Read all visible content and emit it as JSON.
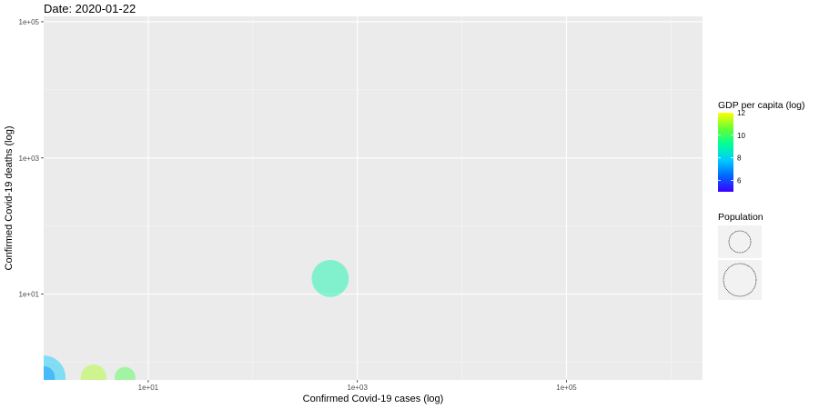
{
  "chart_data": {
    "type": "scatter",
    "title": "Date: 2020-01-22",
    "xlabel": "Confirmed Covid-19 cases (log)",
    "ylabel": "Confirmed Covid-19 deaths (log)",
    "x_scale": "log10",
    "y_scale": "log10",
    "xlim": [
      1,
      2000000
    ],
    "ylim": [
      0.55,
      120000
    ],
    "x_ticks": [
      10,
      1000,
      100000
    ],
    "x_tick_labels": [
      "1e+01",
      "1e+03",
      "1e+05"
    ],
    "y_ticks": [
      10,
      1000,
      100000
    ],
    "y_tick_labels": [
      "1e+01",
      "1e+03",
      "1e+05"
    ],
    "grid": true,
    "legend_position": "right",
    "color_legend": {
      "title": "GDP per capita (log)",
      "range": [
        5,
        12
      ],
      "tick_values": [
        12,
        10,
        8,
        6
      ],
      "tick_labels": [
        "12",
        "10",
        "8",
        "6"
      ],
      "colors": [
        "#3b00ff",
        "#0066ff",
        "#00ccff",
        "#00ff99",
        "#66ff33",
        "#ffff00"
      ]
    },
    "size_legend": {
      "title": "Population",
      "entries": [
        0.5,
        1.0
      ]
    },
    "points": [
      {
        "x": 1,
        "y": 0.6,
        "gdp": 7.8,
        "size": 1.0
      },
      {
        "x": 1,
        "y": 0.6,
        "gdp": 7.0,
        "size": 0.35
      },
      {
        "x": 3,
        "y": 0.6,
        "gdp": 11.2,
        "size": 0.45
      },
      {
        "x": 6,
        "y": 0.6,
        "gdp": 10.2,
        "size": 0.3
      },
      {
        "x": 550,
        "y": 17,
        "gdp": 9.0,
        "size": 0.8
      }
    ]
  }
}
